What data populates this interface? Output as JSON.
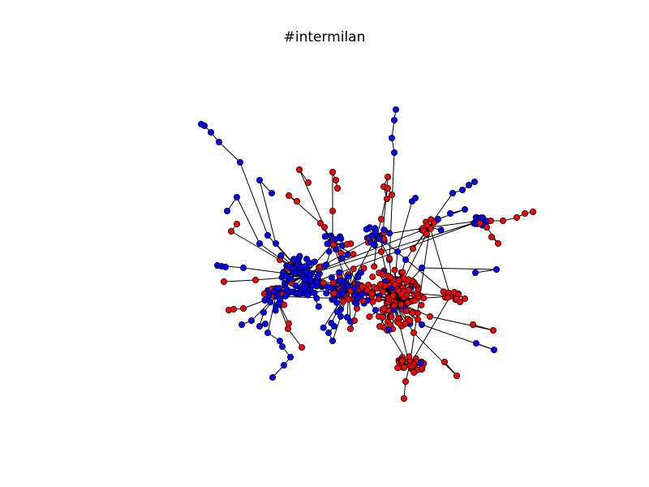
{
  "title": "#intermilan",
  "colors": {
    "node_blue": "#0000ff",
    "node_red": "#ff0000",
    "node_outline": "#000000",
    "edge": "#000000",
    "background": "#ffffff"
  }
}
